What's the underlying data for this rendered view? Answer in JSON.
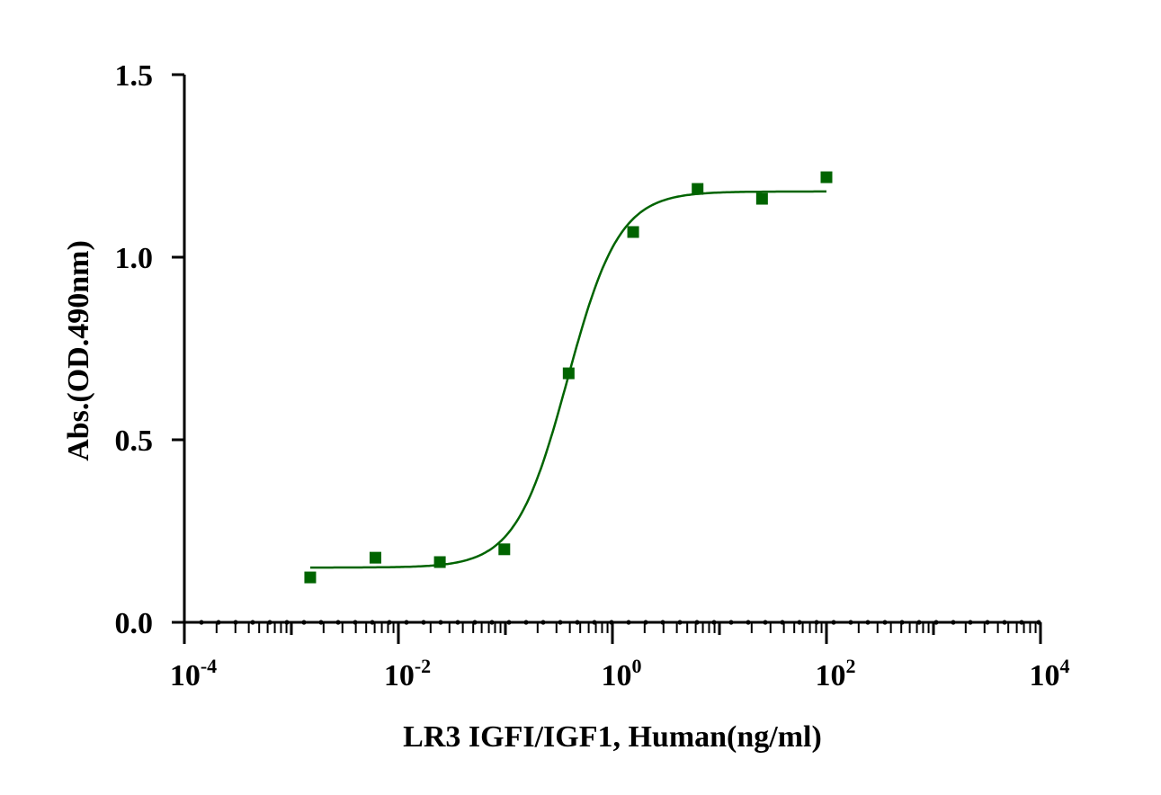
{
  "chart_data": {
    "type": "scatter",
    "title": "",
    "xlabel": "LR3 IGFI/IGF1, Human(ng/ml)",
    "ylabel": "Abs.(OD.490nm)",
    "x_scale": "log",
    "xlim": [
      0.0001,
      10000
    ],
    "ylim": [
      0,
      1.5
    ],
    "x_ticks": [
      {
        "base": "10",
        "exp": "-4",
        "value": 0.0001
      },
      {
        "base": "10",
        "exp": "-2",
        "value": 0.01
      },
      {
        "base": "10",
        "exp": "0",
        "value": 1
      },
      {
        "base": "10",
        "exp": "2",
        "value": 100
      },
      {
        "base": "10",
        "exp": "4",
        "value": 10000
      }
    ],
    "y_ticks": [
      "0.0",
      "0.5",
      "1.0",
      "1.5"
    ],
    "grid": false,
    "color": "#006400",
    "series": [
      {
        "x": [
          0.0015,
          0.0061,
          0.0244,
          0.0977,
          0.39,
          1.5625,
          6.25,
          25,
          100
        ],
        "y": [
          0.123,
          0.177,
          0.165,
          0.2,
          0.682,
          1.069,
          1.187,
          1.16,
          1.219
        ],
        "marker": "square"
      }
    ],
    "fit_curve": {
      "model": "4PL",
      "bottom": 0.15,
      "top": 1.18,
      "ec50": 0.38,
      "hill": 1.8,
      "x_range": [
        0.0015,
        100
      ]
    }
  }
}
